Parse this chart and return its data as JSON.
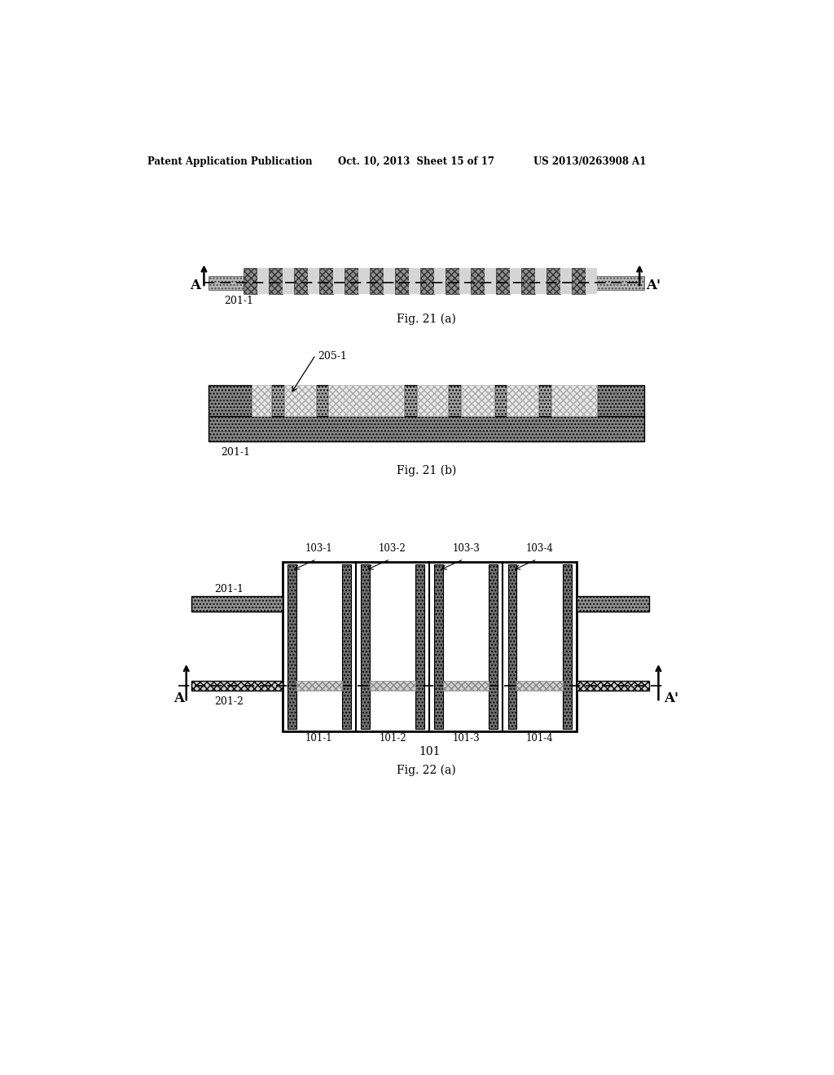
{
  "bg_color": "#ffffff",
  "header_left": "Patent Application Publication",
  "header_mid": "Oct. 10, 2013  Sheet 15 of 17",
  "header_right": "US 2013/0263908 A1",
  "fig21a_label": "Fig. 21 (a)",
  "fig21b_label": "Fig. 21 (b)",
  "fig22a_label": "Fig. 22 (a)",
  "label_201_1": "201-1",
  "label_201_2": "201-2",
  "label_205_1": "205-1",
  "label_101": "101",
  "label_103_1": "103-1",
  "label_103_2": "103-2",
  "label_103_3": "103-3",
  "label_103_4": "103-4",
  "label_101_1": "101-1",
  "label_101_2": "101-2",
  "label_101_3": "101-3",
  "label_101_4": "101-4"
}
